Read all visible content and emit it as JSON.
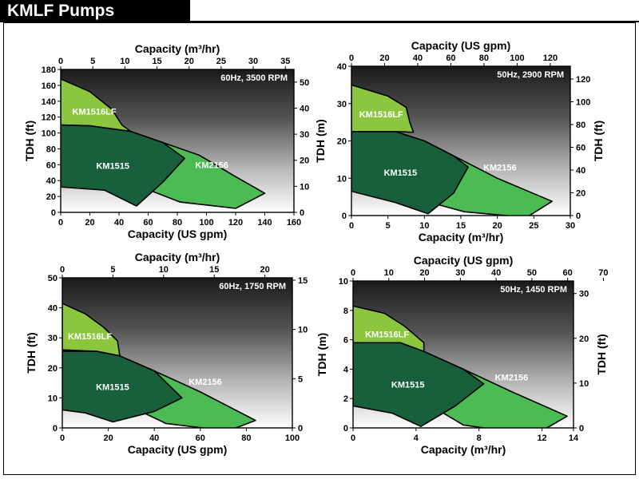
{
  "page": {
    "title": "KMLF Pumps"
  },
  "colors": {
    "km1515": "#17603b",
    "km2156": "#4cbb54",
    "km1516lf": "#8cc63f",
    "outline": "#000000",
    "background_top": "#202020",
    "background_bottom": "#ffffff"
  },
  "chart_data": [
    {
      "type": "area",
      "speed_label": "60Hz, 3500 RPM",
      "x_bottom": {
        "label": "Capacity (US gpm)",
        "range": [
          0,
          160
        ],
        "ticks": [
          0,
          20,
          40,
          60,
          80,
          100,
          120,
          140,
          160
        ]
      },
      "x_top": {
        "label": "Capacity (m³/hr)",
        "range": [
          0,
          36.34
        ],
        "ticks": [
          0,
          5,
          10,
          15,
          20,
          25,
          30,
          35
        ]
      },
      "y_left": {
        "label": "TDH (ft)",
        "range": [
          0,
          180
        ],
        "ticks": [
          0,
          20,
          40,
          60,
          80,
          100,
          120,
          140,
          160,
          180
        ]
      },
      "y_right": {
        "label": "",
        "range": [
          0,
          54.86
        ],
        "ticks": [
          0,
          10,
          20,
          30,
          40,
          50
        ]
      },
      "regions": [
        {
          "name": "KM2156",
          "boundary": [
            [
              0,
              125
            ],
            [
              0,
              110
            ],
            [
              20,
              109
            ],
            [
              48,
              102
            ],
            [
              70,
              88
            ],
            [
              95,
              72
            ],
            [
              120,
              45
            ],
            [
              140,
              24
            ],
            [
              120,
              5
            ],
            [
              82,
              13
            ],
            [
              44,
              40
            ]
          ]
        },
        {
          "name": "KM1516LF",
          "boundary": [
            [
              0,
              168
            ],
            [
              20,
              152
            ],
            [
              35,
              130
            ],
            [
              42,
              110
            ],
            [
              48,
              102
            ],
            [
              20,
              109
            ],
            [
              0,
              110
            ]
          ]
        },
        {
          "name": "KM1515",
          "boundary": [
            [
              0,
              110
            ],
            [
              20,
              109
            ],
            [
              48,
              102
            ],
            [
              70,
              88
            ],
            [
              85,
              68
            ],
            [
              70,
              38
            ],
            [
              52,
              8
            ],
            [
              30,
              28
            ],
            [
              0,
              32
            ]
          ]
        }
      ]
    },
    {
      "type": "area",
      "speed_label": "50Hz, 2900 RPM",
      "x_bottom": {
        "label": "Capacity (m³/hr)",
        "range": [
          0,
          30
        ],
        "ticks": [
          0,
          5,
          10,
          15,
          20,
          25,
          30
        ]
      },
      "x_top": {
        "label": "Capacity (US gpm)",
        "range": [
          0,
          132.1
        ],
        "ticks": [
          0,
          20,
          40,
          60,
          80,
          100,
          120
        ]
      },
      "y_left": {
        "label": "TDH (m)",
        "range": [
          0,
          40
        ],
        "ticks": [
          0,
          10,
          20,
          30,
          40
        ]
      },
      "y_right": {
        "label": "TDH (ft)",
        "range": [
          0,
          131.2
        ],
        "ticks": [
          0,
          20,
          40,
          60,
          80,
          100,
          120
        ]
      },
      "regions": [
        {
          "name": "KM2156",
          "boundary": [
            [
              0,
              27
            ],
            [
              0,
              22.5
            ],
            [
              6,
              22.5
            ],
            [
              10,
              20
            ],
            [
              14,
              16
            ],
            [
              20,
              10
            ],
            [
              27.5,
              3.8
            ],
            [
              24,
              -0.5
            ],
            [
              15.5,
              1
            ],
            [
              8,
              5
            ]
          ]
        },
        {
          "name": "KM1516LF",
          "boundary": [
            [
              0,
              35
            ],
            [
              5,
              32
            ],
            [
              7.5,
              29
            ],
            [
              8,
              25
            ],
            [
              8.5,
              22.3
            ],
            [
              6,
              22.5
            ],
            [
              0,
              22.5
            ]
          ]
        },
        {
          "name": "KM1515",
          "boundary": [
            [
              0,
              22.5
            ],
            [
              6,
              22.5
            ],
            [
              10,
              20
            ],
            [
              14,
              16
            ],
            [
              16,
              13
            ],
            [
              14,
              6
            ],
            [
              10.5,
              0.5
            ],
            [
              6,
              3.5
            ],
            [
              0,
              6.5
            ]
          ]
        }
      ]
    },
    {
      "type": "area",
      "speed_label": "60Hz, 1750 RPM",
      "x_bottom": {
        "label": "Capacity (US gpm)",
        "range": [
          0,
          100
        ],
        "ticks": [
          0,
          20,
          40,
          60,
          80,
          100
        ]
      },
      "x_top": {
        "label": "Capacity (m³/hr)",
        "range": [
          0,
          22.71
        ],
        "ticks": [
          0,
          5,
          10,
          15,
          20
        ]
      },
      "y_left": {
        "label": "TDH (ft)",
        "range": [
          0,
          50
        ],
        "ticks": [
          0,
          10,
          20,
          30,
          40,
          50
        ]
      },
      "y_right": {
        "label": "",
        "range": [
          0,
          15.24
        ],
        "ticks": [
          0,
          5,
          10,
          15
        ]
      },
      "regions": [
        {
          "name": "KM2156",
          "boundary": [
            [
              0,
              32
            ],
            [
              0,
              26
            ],
            [
              15,
              25.5
            ],
            [
              25,
              24
            ],
            [
              40,
              19
            ],
            [
              60,
              12
            ],
            [
              84,
              2.5
            ],
            [
              72,
              -1
            ],
            [
              45,
              1.5
            ],
            [
              30,
              7
            ]
          ]
        },
        {
          "name": "KM1516LF",
          "boundary": [
            [
              0,
              41.5
            ],
            [
              10,
              38
            ],
            [
              18,
              33.5
            ],
            [
              24,
              29
            ],
            [
              25,
              24
            ],
            [
              15,
              25.5
            ],
            [
              0,
              26
            ]
          ]
        },
        {
          "name": "KM1515",
          "boundary": [
            [
              0,
              25.5
            ],
            [
              15,
              25.5
            ],
            [
              25,
              24
            ],
            [
              40,
              19
            ],
            [
              52,
              10
            ],
            [
              40,
              5.5
            ],
            [
              22,
              2
            ],
            [
              10,
              5
            ],
            [
              0,
              6
            ]
          ]
        }
      ]
    },
    {
      "type": "area",
      "speed_label": "50Hz, 1450 RPM",
      "x_bottom": {
        "label": "Capacity (m³/hr)",
        "range": [
          0,
          14
        ],
        "ticks": [
          0,
          4,
          8,
          12,
          14
        ]
      },
      "x_top": {
        "label": "Capacity (US gpm)",
        "range": [
          0,
          61.64
        ],
        "ticks": [
          0,
          10,
          20,
          30,
          40,
          50,
          60,
          70
        ]
      },
      "y_left": {
        "label": "TDH (m)",
        "range": [
          0,
          10
        ],
        "ticks": [
          0,
          2,
          4,
          6,
          8,
          10
        ]
      },
      "y_right": {
        "label": "TDH (ft)",
        "range": [
          0,
          32.8
        ],
        "ticks": [
          0,
          10,
          20,
          30
        ]
      },
      "regions": [
        {
          "name": "KM2156",
          "boundary": [
            [
              0,
              7.2
            ],
            [
              0,
              5.8
            ],
            [
              3,
              5.8
            ],
            [
              4.5,
              5.2
            ],
            [
              7,
              4
            ],
            [
              10,
              2.5
            ],
            [
              13.6,
              0.8
            ],
            [
              11.5,
              -0.5
            ],
            [
              7,
              0.2
            ],
            [
              4.5,
              1.8
            ]
          ]
        },
        {
          "name": "KM1516LF",
          "boundary": [
            [
              0,
              8.3
            ],
            [
              2,
              7.8
            ],
            [
              3.3,
              6.9
            ],
            [
              4.5,
              5.8
            ],
            [
              4.5,
              5.2
            ],
            [
              3,
              5.8
            ],
            [
              0,
              5.8
            ]
          ]
        },
        {
          "name": "KM1515",
          "boundary": [
            [
              0,
              5.8
            ],
            [
              3,
              5.8
            ],
            [
              4.5,
              5.2
            ],
            [
              7,
              4
            ],
            [
              8.3,
              3
            ],
            [
              6.5,
              1.5
            ],
            [
              4.3,
              0.1
            ],
            [
              2.5,
              1
            ],
            [
              0,
              1.5
            ]
          ]
        }
      ]
    }
  ]
}
